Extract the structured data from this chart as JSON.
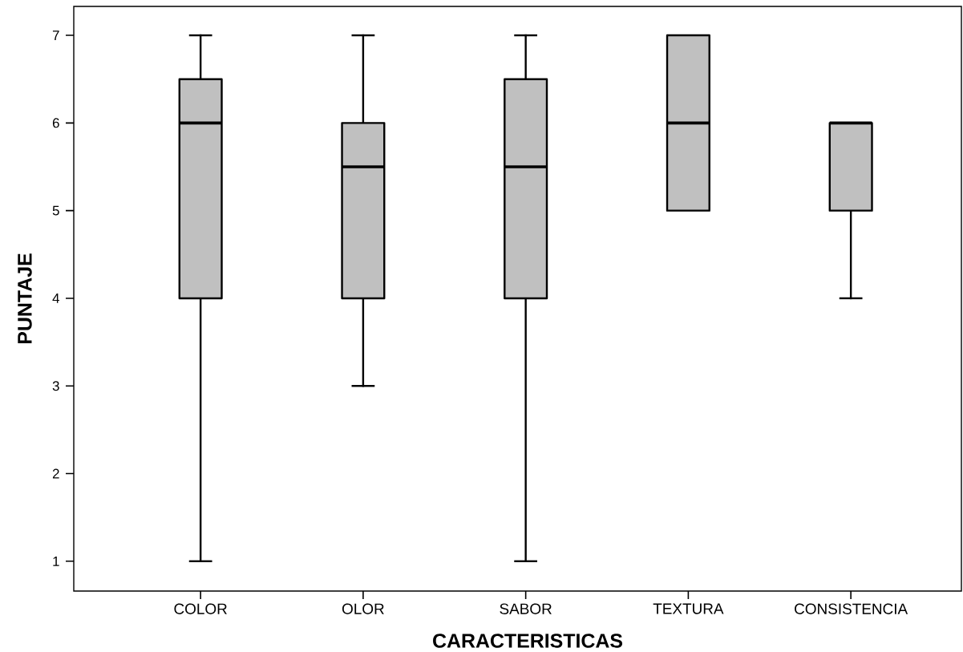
{
  "chart_data": {
    "type": "box",
    "xlabel": "CARACTERISTICAS",
    "ylabel": "PUNTAJE",
    "categories": [
      "COLOR",
      "OLOR",
      "SABOR",
      "TEXTURA",
      "CONSISTENCIA"
    ],
    "boxes": [
      {
        "low": 1,
        "q1": 4,
        "median": 6,
        "q3": 6.5,
        "high": 7
      },
      {
        "low": 3,
        "q1": 4,
        "median": 5.5,
        "q3": 6,
        "high": 7
      },
      {
        "low": 1,
        "q1": 4,
        "median": 5.5,
        "q3": 6.5,
        "high": 7
      },
      {
        "low": 5,
        "q1": 5,
        "median": 6,
        "q3": 7,
        "high": 7
      },
      {
        "low": 4,
        "q1": 5,
        "median": 6,
        "q3": 6,
        "high": 6
      }
    ],
    "color": "#c0c0c0",
    "ylim": [
      0.66,
      7.33
    ],
    "yticks": [
      1,
      2,
      3,
      4,
      5,
      6,
      7
    ]
  }
}
